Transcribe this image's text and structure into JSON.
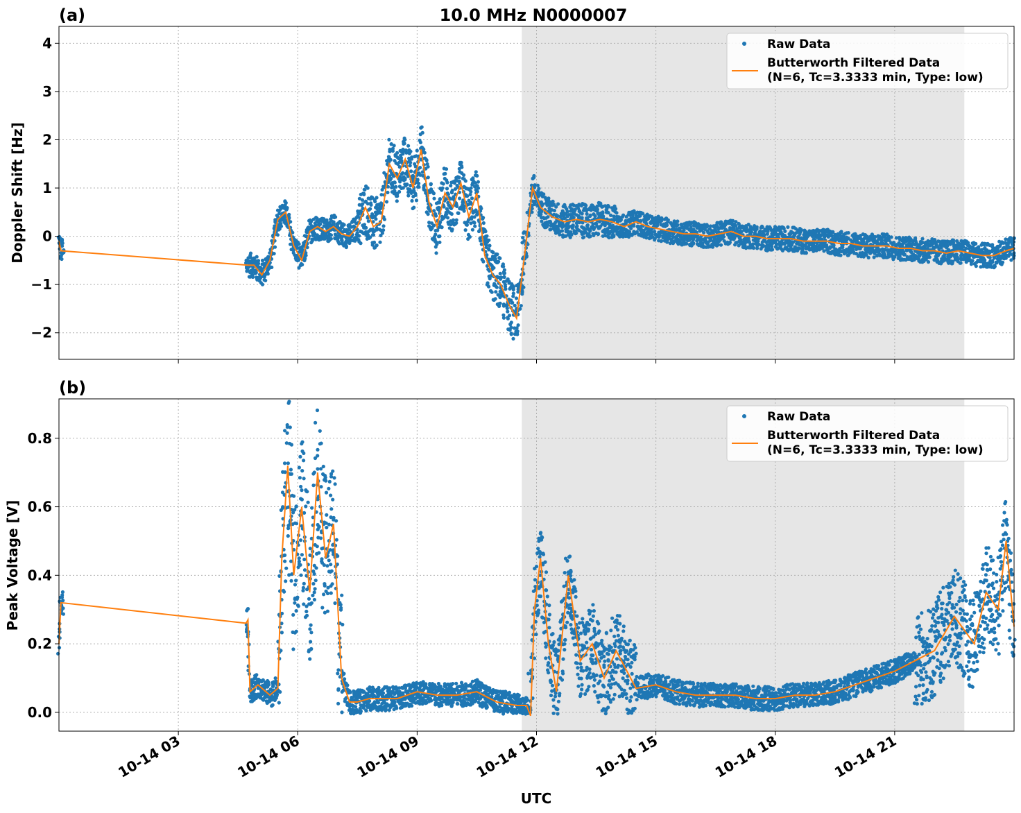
{
  "figure": {
    "title": "10.0 MHz N0000007",
    "xlabel": "UTC",
    "x_ticks": [
      "10-14 03",
      "10-14 06",
      "10-14 09",
      "10-14 12",
      "10-14 15",
      "10-14 18",
      "10-14 21"
    ],
    "colors": {
      "raw": "#1f77b4",
      "filtered": "#ff7f0e",
      "shade": "#e6e6e6",
      "grid": "#b0b0b0"
    }
  },
  "chart_data": [
    {
      "panel_label": "(a)",
      "type": "scatter",
      "ylabel": "Doppler Shift [Hz]",
      "xlim_hours": [
        0,
        24
      ],
      "ylim": [
        -2.55,
        4.35
      ],
      "y_ticks": [
        -2,
        -1,
        0,
        1,
        2,
        3,
        4
      ],
      "y_tick_labels": [
        "−2",
        "−1",
        "0",
        "1",
        "2",
        "3",
        "4"
      ],
      "shaded_interval_hours": [
        11.63,
        22.75
      ],
      "legend": {
        "position": "top-right",
        "raw_label": "Raw Data",
        "filtered_label_1": "Butterworth Filtered Data",
        "filtered_label_2": "(N=6, Tc=3.3333 min, Type: low)"
      },
      "series": [
        {
          "name": "Raw Data",
          "kind": "scatter"
        },
        {
          "name": "Butterworth Filtered Data",
          "kind": "line",
          "x_hours": [
            0,
            0.05,
            4.75,
            4.9,
            5.1,
            5.3,
            5.5,
            5.7,
            5.9,
            6.1,
            6.3,
            6.5,
            6.7,
            6.9,
            7.1,
            7.3,
            7.5,
            7.7,
            7.9,
            8.1,
            8.3,
            8.5,
            8.7,
            8.9,
            9.1,
            9.3,
            9.5,
            9.7,
            9.9,
            10.1,
            10.3,
            10.5,
            10.7,
            10.9,
            11.1,
            11.3,
            11.5,
            11.7,
            11.9,
            12.1,
            12.4,
            12.7,
            13.0,
            13.3,
            13.6,
            13.9,
            14.2,
            14.5,
            14.8,
            15.1,
            15.4,
            15.7,
            16.0,
            16.3,
            16.6,
            16.9,
            17.2,
            17.5,
            17.8,
            18.1,
            18.4,
            18.7,
            19.0,
            19.3,
            19.6,
            19.9,
            20.2,
            20.5,
            20.8,
            21.1,
            21.4,
            21.7,
            22.0,
            22.3,
            22.6,
            22.9,
            23.2,
            23.5,
            23.8,
            24.0
          ],
          "y": [
            -0.1,
            -0.3,
            -0.6,
            -0.6,
            -0.8,
            -0.5,
            0.35,
            0.5,
            -0.2,
            -0.5,
            0.1,
            0.2,
            0.1,
            0.2,
            0.05,
            0.0,
            0.2,
            0.6,
            0.2,
            0.3,
            1.5,
            1.2,
            1.6,
            1.0,
            1.8,
            0.7,
            0.2,
            0.9,
            0.6,
            1.1,
            0.4,
            0.9,
            -0.4,
            -0.8,
            -1.0,
            -1.4,
            -1.7,
            -0.4,
            1.0,
            0.6,
            0.4,
            0.3,
            0.35,
            0.3,
            0.35,
            0.3,
            0.2,
            0.3,
            0.2,
            0.15,
            0.1,
            0.05,
            0.05,
            0.0,
            0.05,
            0.1,
            0.0,
            0.0,
            -0.05,
            -0.05,
            -0.05,
            -0.1,
            -0.1,
            -0.1,
            -0.15,
            -0.15,
            -0.2,
            -0.2,
            -0.2,
            -0.25,
            -0.25,
            -0.3,
            -0.3,
            -0.35,
            -0.3,
            -0.35,
            -0.4,
            -0.4,
            -0.3,
            -0.25
          ]
        }
      ]
    },
    {
      "panel_label": "(b)",
      "type": "scatter",
      "ylabel": "Peak Voltage [V]",
      "xlim_hours": [
        0,
        24
      ],
      "ylim": [
        -0.055,
        0.915
      ],
      "y_ticks": [
        0.0,
        0.2,
        0.4,
        0.6,
        0.8
      ],
      "y_tick_labels": [
        "0.0",
        "0.2",
        "0.4",
        "0.6",
        "0.8"
      ],
      "shaded_interval_hours": [
        11.63,
        22.75
      ],
      "legend": {
        "position": "top-right",
        "raw_label": "Raw Data",
        "filtered_label_1": "Butterworth Filtered Data",
        "filtered_label_2": "(N=6, Tc=3.3333 min, Type: low)"
      },
      "series": [
        {
          "name": "Raw Data",
          "kind": "scatter"
        },
        {
          "name": "Butterworth Filtered Data",
          "kind": "line",
          "x_hours": [
            0,
            0.05,
            4.7,
            4.75,
            4.8,
            5.0,
            5.3,
            5.5,
            5.6,
            5.75,
            5.9,
            6.1,
            6.3,
            6.5,
            6.7,
            6.9,
            7.1,
            7.3,
            7.5,
            7.8,
            8.1,
            8.5,
            9.0,
            9.5,
            10.0,
            10.5,
            11.0,
            11.5,
            11.75,
            11.85,
            11.95,
            12.1,
            12.3,
            12.5,
            12.8,
            13.1,
            13.4,
            13.7,
            14.0,
            14.5,
            15.0,
            15.5,
            16.0,
            16.5,
            17.0,
            17.5,
            18.0,
            18.5,
            19.0,
            19.5,
            20.0,
            20.5,
            21.0,
            21.5,
            22.0,
            22.5,
            23.0,
            23.3,
            23.6,
            23.8,
            24.0
          ],
          "y": [
            0.2,
            0.32,
            0.26,
            0.27,
            0.06,
            0.08,
            0.05,
            0.07,
            0.45,
            0.72,
            0.4,
            0.6,
            0.35,
            0.7,
            0.45,
            0.55,
            0.1,
            0.03,
            0.03,
            0.04,
            0.04,
            0.04,
            0.06,
            0.05,
            0.05,
            0.06,
            0.03,
            0.02,
            0.02,
            -0.01,
            0.3,
            0.45,
            0.2,
            0.06,
            0.4,
            0.15,
            0.2,
            0.1,
            0.18,
            0.07,
            0.08,
            0.06,
            0.05,
            0.05,
            0.05,
            0.04,
            0.04,
            0.05,
            0.05,
            0.06,
            0.08,
            0.1,
            0.12,
            0.15,
            0.18,
            0.28,
            0.2,
            0.35,
            0.3,
            0.5,
            0.25
          ]
        }
      ]
    }
  ]
}
